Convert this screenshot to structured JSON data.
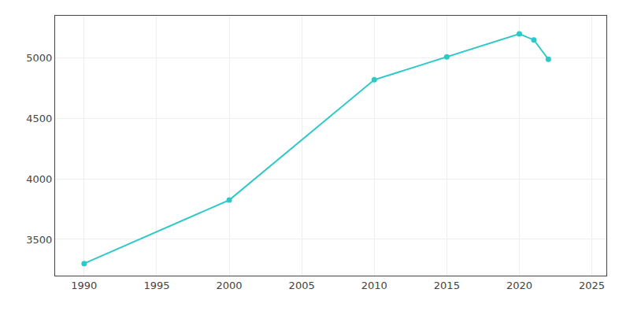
{
  "chart_data": {
    "type": "line",
    "x": [
      1990,
      2000,
      2010,
      2015,
      2020,
      2021,
      2022
    ],
    "values": [
      3300,
      3825,
      4820,
      5010,
      5200,
      5150,
      4990
    ],
    "color": "#2ec8c8",
    "marker": "circle",
    "xlim": [
      1988,
      2026
    ],
    "ylim": [
      3200,
      5350
    ],
    "xticks": [
      1990,
      1995,
      2000,
      2005,
      2010,
      2015,
      2020,
      2025
    ],
    "yticks": [
      3500,
      4000,
      4500,
      5000
    ],
    "grid": true
  }
}
